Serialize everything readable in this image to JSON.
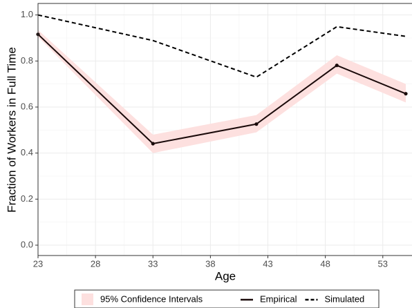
{
  "chart_data": {
    "type": "line",
    "x_label": "Age",
    "y_label": "Fraction of Workers in Full Time",
    "x": [
      23,
      33,
      42,
      49,
      55
    ],
    "band": {
      "name": "95% Confidence Intervals",
      "color": "#fde0df",
      "lower": [
        0.905,
        0.4,
        0.49,
        0.745,
        0.62
      ],
      "upper": [
        0.935,
        0.48,
        0.565,
        0.825,
        0.7
      ]
    },
    "series": [
      {
        "name": "Empirical",
        "color": "#1a0a0a",
        "dashed": false,
        "markers": true,
        "values": [
          0.916,
          0.441,
          0.526,
          0.781,
          0.658
        ]
      },
      {
        "name": "Simulated",
        "color": "#000000",
        "dashed": true,
        "markers": false,
        "values": [
          1.0,
          0.889,
          0.73,
          0.949,
          0.907
        ]
      }
    ],
    "xlim": [
      23,
      55.6
    ],
    "xticks": [
      23,
      28,
      33,
      38,
      43,
      48,
      53
    ],
    "ylim": [
      -0.045,
      1.05
    ],
    "yticks": [
      {
        "value": 0,
        "label": "0.0"
      },
      0.2,
      0.4,
      0.6,
      0.8,
      {
        "value": 1,
        "label": "1.0"
      }
    ],
    "grid": true,
    "legend_position": "bottom"
  }
}
